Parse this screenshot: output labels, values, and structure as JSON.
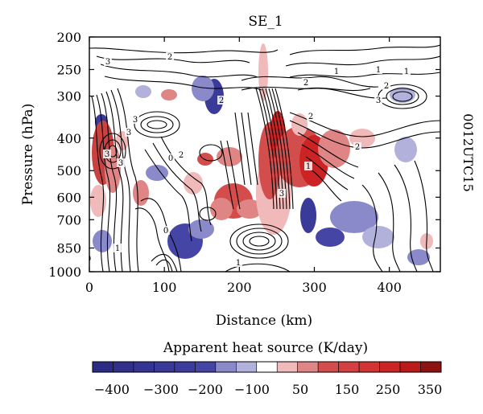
{
  "chart_data": {
    "type": "heatmap",
    "title": "SE_1",
    "side_label": "0012UTC15",
    "xlabel": "Distance (km)",
    "ylabel": "Pressure (hPa)",
    "x_ticks": [
      0,
      100,
      200,
      300,
      400
    ],
    "xlim": [
      0,
      468
    ],
    "y_ticks": [
      200,
      250,
      300,
      400,
      500,
      600,
      700,
      850,
      1000
    ],
    "y_scale": "pressure (reversed, top = 200 hPa)",
    "colorbar": {
      "title": "Apparent heat source (K/day)",
      "tick_labels": [
        "−400",
        "−300",
        "−200",
        "−100",
        "50",
        "150",
        "250",
        "350"
      ],
      "colors": [
        "#2c2c87",
        "#31318c",
        "#343494",
        "#393999",
        "#3c3c9e",
        "#4545a5",
        "#8a8acb",
        "#b1b1dc",
        "#ffffff",
        "#f1baba",
        "#e08585",
        "#d44d4d",
        "#d43f3f",
        "#d23434",
        "#cc2424",
        "#bb1a1a",
        "#8e1212"
      ]
    },
    "contour_labels": [
      "3",
      "2",
      "2",
      "1",
      "3",
      "2",
      "3",
      "1",
      "3",
      "2",
      "2",
      "2",
      "1",
      "1",
      "1",
      "2",
      "3",
      "0",
      "0",
      "0",
      "3",
      "3",
      "1"
    ],
    "regions": [
      {
        "sign": "negative",
        "x": 15,
        "p": 400,
        "value": -350
      },
      {
        "sign": "positive",
        "x": 20,
        "p": 520,
        "value": 250
      },
      {
        "sign": "positive",
        "x": 70,
        "p": 620,
        "value": 150
      },
      {
        "sign": "negative",
        "x": 165,
        "p": 330,
        "value": -350
      },
      {
        "sign": "negative",
        "x": 130,
        "p": 780,
        "value": -250
      },
      {
        "sign": "positive",
        "x": 240,
        "p": 480,
        "value": 350
      },
      {
        "sign": "positive",
        "x": 330,
        "p": 520,
        "value": 350
      },
      {
        "sign": "negative",
        "x": 285,
        "p": 760,
        "value": -400
      },
      {
        "sign": "negative",
        "x": 360,
        "p": 800,
        "value": -200
      },
      {
        "sign": "negative",
        "x": 410,
        "p": 300,
        "value": -150
      }
    ]
  }
}
